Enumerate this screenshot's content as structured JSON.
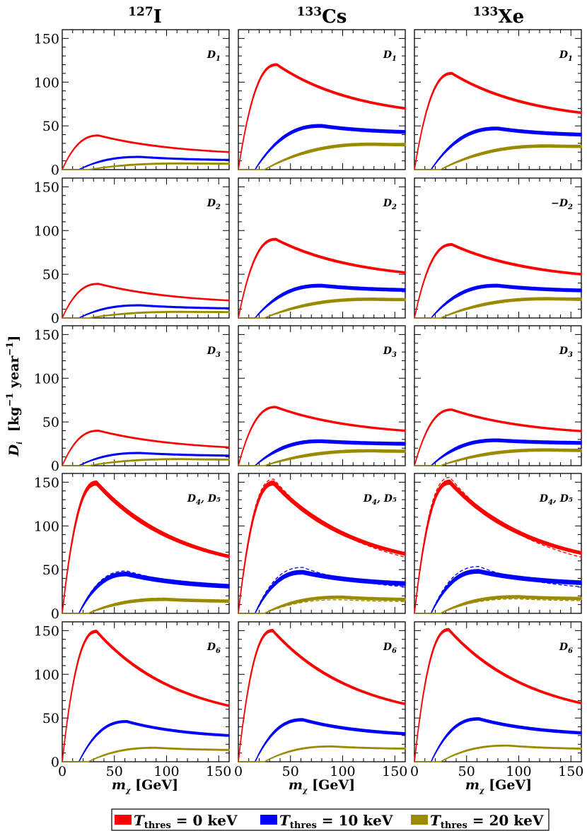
{
  "columns": [
    {
      "mass": "127",
      "element": "I"
    },
    {
      "mass": "133",
      "element": "Cs"
    },
    {
      "mass": "133",
      "element": "Xe"
    }
  ],
  "y_axis_label": {
    "symbol": "D",
    "sub": "i",
    "unit": "[kg",
    "exp1": "−1",
    "mid": " year",
    "exp2": "−1",
    "close": "]"
  },
  "x_axis_label": {
    "symbol": "m",
    "sub": "χ",
    "unit": " [GeV]"
  },
  "legend": [
    {
      "var": "T",
      "sub": "thres",
      "text": " = 0 keV",
      "color": "#ff0000"
    },
    {
      "var": "T",
      "sub": "thres",
      "text": " = 10 keV",
      "color": "#0000ff"
    },
    {
      "var": "T",
      "sub": "thres",
      "text": " = 20 keV",
      "color": "#9a8a00"
    }
  ],
  "chart_data": {
    "type": "line",
    "xlim": [
      0,
      160
    ],
    "ylim": [
      0,
      160
    ],
    "x_ticks": [
      0,
      50,
      100,
      150
    ],
    "y_ticks": [
      0,
      50,
      100,
      150
    ],
    "colors": {
      "T0": "#ff0000",
      "T10": "#0000ff",
      "T20": "#9a8a00"
    },
    "panels": [
      {
        "row": 0,
        "col": 0,
        "label": "D",
        "label_sub": "1",
        "label_prefix": "",
        "label_suffix": "",
        "series": [
          {
            "threshold": "T0",
            "peak_x": 35,
            "peak_y": 39,
            "end_y": 20,
            "band": 1.0,
            "dashed": false
          },
          {
            "threshold": "T10",
            "peak_x": 75,
            "peak_y": 14.5,
            "end_y": 11,
            "band": 1.2,
            "dashed": false
          },
          {
            "threshold": "T20",
            "peak_x": 115,
            "peak_y": 7,
            "end_y": 6.8,
            "band": 1.0,
            "dashed": false
          }
        ]
      },
      {
        "row": 0,
        "col": 1,
        "label": "D",
        "label_sub": "1",
        "label_prefix": "",
        "label_suffix": "",
        "series": [
          {
            "threshold": "T0",
            "peak_x": 37,
            "peak_y": 120,
            "end_y": 70,
            "band": 2.0,
            "dashed": false
          },
          {
            "threshold": "T10",
            "peak_x": 80,
            "peak_y": 50,
            "end_y": 43,
            "band": 3.0,
            "dashed": false
          },
          {
            "threshold": "T20",
            "peak_x": 130,
            "peak_y": 29,
            "end_y": 28.5,
            "band": 2.5,
            "dashed": false
          }
        ]
      },
      {
        "row": 0,
        "col": 2,
        "label": "D",
        "label_sub": "1",
        "label_prefix": "",
        "label_suffix": "",
        "series": [
          {
            "threshold": "T0",
            "peak_x": 36,
            "peak_y": 110,
            "end_y": 65,
            "band": 2.0,
            "dashed": false
          },
          {
            "threshold": "T10",
            "peak_x": 80,
            "peak_y": 47,
            "end_y": 40,
            "band": 3.0,
            "dashed": false
          },
          {
            "threshold": "T20",
            "peak_x": 130,
            "peak_y": 27,
            "end_y": 26.5,
            "band": 2.5,
            "dashed": false
          }
        ]
      },
      {
        "row": 1,
        "col": 0,
        "label": "D",
        "label_sub": "2",
        "label_prefix": "",
        "label_suffix": "",
        "series": [
          {
            "threshold": "T0",
            "peak_x": 35,
            "peak_y": 39,
            "end_y": 20,
            "band": 1.0,
            "dashed": false
          },
          {
            "threshold": "T10",
            "peak_x": 75,
            "peak_y": 14.5,
            "end_y": 11,
            "band": 1.2,
            "dashed": false
          },
          {
            "threshold": "T20",
            "peak_x": 115,
            "peak_y": 7,
            "end_y": 6.8,
            "band": 1.0,
            "dashed": false
          }
        ]
      },
      {
        "row": 1,
        "col": 1,
        "label": "D",
        "label_sub": "2",
        "label_prefix": "",
        "label_suffix": "",
        "series": [
          {
            "threshold": "T0",
            "peak_x": 36,
            "peak_y": 90,
            "end_y": 52,
            "band": 2.0,
            "dashed": false
          },
          {
            "threshold": "T10",
            "peak_x": 80,
            "peak_y": 37,
            "end_y": 32,
            "band": 3.0,
            "dashed": false
          },
          {
            "threshold": "T20",
            "peak_x": 130,
            "peak_y": 21.5,
            "end_y": 21,
            "band": 2.5,
            "dashed": false
          }
        ]
      },
      {
        "row": 1,
        "col": 2,
        "label": "D",
        "label_sub": "2",
        "label_prefix": "−",
        "label_suffix": "",
        "series": [
          {
            "threshold": "T0",
            "peak_x": 36,
            "peak_y": 84,
            "end_y": 50,
            "band": 2.0,
            "dashed": false
          },
          {
            "threshold": "T10",
            "peak_x": 80,
            "peak_y": 37,
            "end_y": 31.5,
            "band": 3.0,
            "dashed": false
          },
          {
            "threshold": "T20",
            "peak_x": 130,
            "peak_y": 22,
            "end_y": 21.5,
            "band": 2.5,
            "dashed": false
          }
        ]
      },
      {
        "row": 2,
        "col": 0,
        "label": "D",
        "label_sub": "3",
        "label_prefix": "",
        "label_suffix": "",
        "series": [
          {
            "threshold": "T0",
            "peak_x": 35,
            "peak_y": 40,
            "end_y": 21,
            "band": 1.0,
            "dashed": false
          },
          {
            "threshold": "T10",
            "peak_x": 75,
            "peak_y": 14.5,
            "end_y": 11.5,
            "band": 1.2,
            "dashed": false
          },
          {
            "threshold": "T20",
            "peak_x": 115,
            "peak_y": 7.5,
            "end_y": 7,
            "band": 1.0,
            "dashed": false
          }
        ]
      },
      {
        "row": 2,
        "col": 1,
        "label": "D",
        "label_sub": "3",
        "label_prefix": "",
        "label_suffix": "",
        "series": [
          {
            "threshold": "T0",
            "peak_x": 36,
            "peak_y": 67,
            "end_y": 40,
            "band": 1.5,
            "dashed": false
          },
          {
            "threshold": "T10",
            "peak_x": 80,
            "peak_y": 28,
            "end_y": 25,
            "band": 3.0,
            "dashed": false
          },
          {
            "threshold": "T20",
            "peak_x": 130,
            "peak_y": 17,
            "end_y": 16.5,
            "band": 2.5,
            "dashed": false
          }
        ]
      },
      {
        "row": 2,
        "col": 2,
        "label": "D",
        "label_sub": "3",
        "label_prefix": "",
        "label_suffix": "",
        "series": [
          {
            "threshold": "T0",
            "peak_x": 36,
            "peak_y": 64,
            "end_y": 39.5,
            "band": 1.5,
            "dashed": false
          },
          {
            "threshold": "T10",
            "peak_x": 80,
            "peak_y": 29,
            "end_y": 26,
            "band": 3.0,
            "dashed": false
          },
          {
            "threshold": "T20",
            "peak_x": 130,
            "peak_y": 18,
            "end_y": 17.5,
            "band": 2.5,
            "dashed": false
          }
        ]
      },
      {
        "row": 3,
        "col": 0,
        "label": "D",
        "label_sub": "4",
        "label_prefix": "",
        "label_suffix": ", D₅",
        "series": [
          {
            "threshold": "T0",
            "peak_x": 33,
            "peak_y": 149,
            "end_y": 65,
            "band": 4.5,
            "dashed": false
          },
          {
            "threshold": "T0",
            "peak_x": 33,
            "peak_y": 146,
            "end_y": 64,
            "band": 1.0,
            "dashed": true
          },
          {
            "threshold": "T10",
            "peak_x": 62,
            "peak_y": 45,
            "end_y": 31,
            "band": 4.0,
            "dashed": false
          },
          {
            "threshold": "T10",
            "peak_x": 62,
            "peak_y": 48,
            "end_y": 30.5,
            "band": 1.0,
            "dashed": true
          },
          {
            "threshold": "T20",
            "peak_x": 100,
            "peak_y": 16,
            "end_y": 14,
            "band": 2.5,
            "dashed": false
          },
          {
            "threshold": "T20",
            "peak_x": 100,
            "peak_y": 17,
            "end_y": 13.5,
            "band": 1.0,
            "dashed": true
          }
        ]
      },
      {
        "row": 3,
        "col": 1,
        "label": "D",
        "label_sub": "4",
        "label_prefix": "",
        "label_suffix": ", D₅",
        "series": [
          {
            "threshold": "T0",
            "peak_x": 34,
            "peak_y": 149,
            "end_y": 68,
            "band": 4.5,
            "dashed": false
          },
          {
            "threshold": "T0",
            "peak_x": 34,
            "peak_y": 153,
            "end_y": 64,
            "band": 1.0,
            "dashed": true
          },
          {
            "threshold": "T10",
            "peak_x": 62,
            "peak_y": 47,
            "end_y": 34,
            "band": 4.0,
            "dashed": false
          },
          {
            "threshold": "T10",
            "peak_x": 62,
            "peak_y": 52,
            "end_y": 30,
            "band": 1.0,
            "dashed": true
          },
          {
            "threshold": "T20",
            "peak_x": 100,
            "peak_y": 18.5,
            "end_y": 16,
            "band": 2.5,
            "dashed": false
          },
          {
            "threshold": "T20",
            "peak_x": 100,
            "peak_y": 15,
            "end_y": 13,
            "band": 1.0,
            "dashed": true
          }
        ]
      },
      {
        "row": 3,
        "col": 2,
        "label": "D",
        "label_sub": "4",
        "label_prefix": "",
        "label_suffix": ", D₅",
        "series": [
          {
            "threshold": "T0",
            "peak_x": 34,
            "peak_y": 150,
            "end_y": 69,
            "band": 4.5,
            "dashed": false
          },
          {
            "threshold": "T0",
            "peak_x": 34,
            "peak_y": 155,
            "end_y": 64,
            "band": 1.0,
            "dashed": true
          },
          {
            "threshold": "T10",
            "peak_x": 62,
            "peak_y": 48,
            "end_y": 35,
            "band": 4.0,
            "dashed": false
          },
          {
            "threshold": "T10",
            "peak_x": 62,
            "peak_y": 53,
            "end_y": 30,
            "band": 1.0,
            "dashed": true
          },
          {
            "threshold": "T20",
            "peak_x": 100,
            "peak_y": 19,
            "end_y": 17,
            "band": 2.5,
            "dashed": false
          },
          {
            "threshold": "T20",
            "peak_x": 100,
            "peak_y": 16,
            "end_y": 14,
            "band": 1.0,
            "dashed": true
          }
        ]
      },
      {
        "row": 4,
        "col": 0,
        "label": "D",
        "label_sub": "6",
        "label_prefix": "",
        "label_suffix": "",
        "series": [
          {
            "threshold": "T0",
            "peak_x": 33,
            "peak_y": 149,
            "end_y": 64,
            "band": 2.5,
            "dashed": false
          },
          {
            "threshold": "T10",
            "peak_x": 62,
            "peak_y": 46,
            "end_y": 30,
            "band": 2.0,
            "dashed": false
          },
          {
            "threshold": "T20",
            "peak_x": 90,
            "peak_y": 16,
            "end_y": 13.5,
            "band": 1.0,
            "dashed": false
          }
        ]
      },
      {
        "row": 4,
        "col": 1,
        "label": "D",
        "label_sub": "6",
        "label_prefix": "",
        "label_suffix": "",
        "series": [
          {
            "threshold": "T0",
            "peak_x": 33,
            "peak_y": 150,
            "end_y": 66,
            "band": 2.5,
            "dashed": false
          },
          {
            "threshold": "T10",
            "peak_x": 62,
            "peak_y": 48,
            "end_y": 32,
            "band": 2.5,
            "dashed": false
          },
          {
            "threshold": "T20",
            "peak_x": 90,
            "peak_y": 17.5,
            "end_y": 15,
            "band": 1.0,
            "dashed": false
          }
        ]
      },
      {
        "row": 4,
        "col": 2,
        "label": "D",
        "label_sub": "6",
        "label_prefix": "",
        "label_suffix": "",
        "series": [
          {
            "threshold": "T0",
            "peak_x": 33,
            "peak_y": 151,
            "end_y": 67,
            "band": 2.5,
            "dashed": false
          },
          {
            "threshold": "T10",
            "peak_x": 62,
            "peak_y": 49,
            "end_y": 33,
            "band": 2.5,
            "dashed": false
          },
          {
            "threshold": "T20",
            "peak_x": 90,
            "peak_y": 18.5,
            "end_y": 15,
            "band": 1.0,
            "dashed": false
          }
        ]
      }
    ]
  }
}
